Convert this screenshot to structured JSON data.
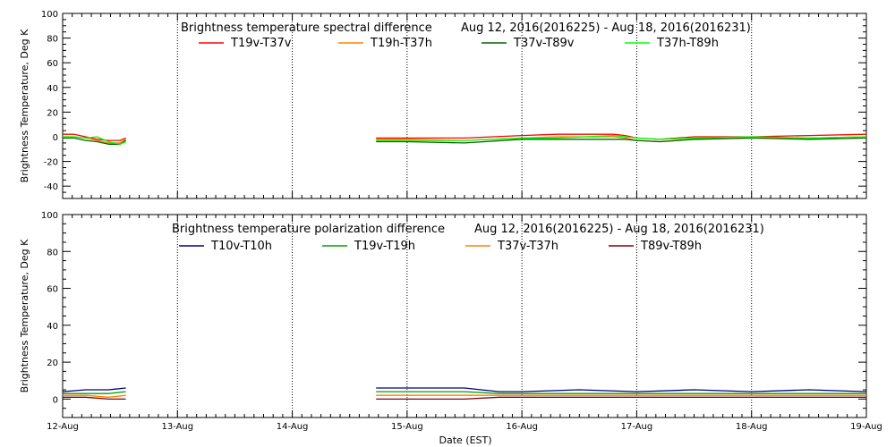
{
  "figure": {
    "xlabel": "Date (EST)",
    "x_ticks": [
      "12-Aug",
      "13-Aug",
      "14-Aug",
      "15-Aug",
      "16-Aug",
      "17-Aug",
      "18-Aug",
      "19-Aug"
    ]
  },
  "chart_data": [
    {
      "type": "line",
      "title": "Brightness temperature spectral difference",
      "subtitle": "Aug 12, 2016(2016225) - Aug 18, 2016(2016231)",
      "ylabel": "Brightness Temperature, Deg K",
      "xlabel": "",
      "xlim": [
        "12-Aug",
        "19-Aug"
      ],
      "ylim": [
        -50,
        100
      ],
      "y_ticks": [
        -40,
        -20,
        0,
        20,
        40,
        60,
        80,
        100
      ],
      "vertical_gridlines": [
        "13-Aug",
        "14-Aug",
        "15-Aug",
        "16-Aug",
        "17-Aug",
        "18-Aug"
      ],
      "legend_position": "top",
      "series": [
        {
          "name": "T19v-T37v",
          "color": "#ff0000",
          "segments": [
            {
              "x": [
                0.0,
                0.1,
                0.2,
                0.3,
                0.4,
                0.5,
                0.55
              ],
              "y": [
                2,
                2,
                0,
                -2,
                -3,
                -3,
                -1
              ]
            },
            {
              "x": [
                2.73,
                3.0,
                3.5,
                4.0,
                4.3,
                4.8,
                4.9,
                5.0,
                5.2,
                5.5,
                6.0,
                6.5,
                7.0
              ],
              "y": [
                -1,
                -1,
                -1,
                1,
                2,
                2,
                1,
                -1,
                -2,
                0,
                0,
                1,
                2
              ]
            }
          ]
        },
        {
          "name": "T19h-T37h",
          "color": "#ff8000",
          "segments": [
            {
              "x": [
                0.0,
                0.1,
                0.2,
                0.3,
                0.4,
                0.5,
                0.55
              ],
              "y": [
                0,
                0,
                -1,
                -3,
                -5,
                -5,
                -2
              ]
            },
            {
              "x": [
                2.73,
                3.0,
                3.5,
                4.0,
                4.3,
                4.8,
                4.9,
                5.0,
                5.2,
                5.5,
                6.0,
                6.5,
                7.0
              ],
              "y": [
                -2,
                -2,
                -3,
                -1,
                0,
                0,
                -1,
                -3,
                -4,
                -2,
                -1,
                -1,
                0
              ]
            }
          ]
        },
        {
          "name": "T37v-T89v",
          "color": "#006400",
          "segments": [
            {
              "x": [
                0.0,
                0.1,
                0.2,
                0.3,
                0.4,
                0.5,
                0.55
              ],
              "y": [
                -1,
                -1,
                -3,
                -4,
                -6,
                -6,
                -3
              ]
            },
            {
              "x": [
                2.73,
                3.0,
                3.5,
                4.0,
                4.3,
                4.8,
                4.9,
                5.0,
                5.2,
                5.5,
                6.0,
                6.5,
                7.0
              ],
              "y": [
                -4,
                -4,
                -5,
                -2,
                -2,
                -2,
                -2,
                -3,
                -4,
                -2,
                -1,
                -2,
                -1
              ]
            }
          ]
        },
        {
          "name": "T37h-T89h",
          "color": "#00ff00",
          "segments": [
            {
              "x": [
                0.0,
                0.1,
                0.2,
                0.3,
                0.4,
                0.5,
                0.55
              ],
              "y": [
                0,
                0,
                -1,
                0,
                -4,
                -6,
                -4
              ]
            },
            {
              "x": [
                2.73,
                3.0,
                3.5,
                4.0,
                4.3,
                4.8,
                4.9,
                5.0,
                5.2,
                5.5,
                6.0,
                6.5,
                7.0
              ],
              "y": [
                -3,
                -3,
                -3,
                -1,
                -1,
                1,
                0,
                -1,
                -2,
                -1,
                0,
                -1,
                0
              ]
            }
          ]
        }
      ]
    },
    {
      "type": "line",
      "title": "Brightness temperature polarization difference",
      "subtitle": "Aug 12, 2016(2016225) - Aug 18, 2016(2016231)",
      "ylabel": "Brightness Temperature, Deg K",
      "xlabel": "Date (EST)",
      "xlim": [
        "12-Aug",
        "19-Aug"
      ],
      "ylim": [
        -10,
        100
      ],
      "y_ticks": [
        0,
        20,
        40,
        60,
        80,
        100
      ],
      "vertical_gridlines": [
        "13-Aug",
        "14-Aug",
        "15-Aug",
        "16-Aug",
        "17-Aug",
        "18-Aug"
      ],
      "legend_position": "top",
      "series": [
        {
          "name": "T10v-T10h",
          "color": "#000080",
          "segments": [
            {
              "x": [
                0.0,
                0.2,
                0.4,
                0.55
              ],
              "y": [
                4,
                5,
                5,
                6
              ]
            },
            {
              "x": [
                2.73,
                3.0,
                3.5,
                3.8,
                4.0,
                4.5,
                5.0,
                5.5,
                6.0,
                6.5,
                7.0
              ],
              "y": [
                6,
                6,
                6,
                4,
                4,
                5,
                4,
                5,
                4,
                5,
                4
              ]
            }
          ]
        },
        {
          "name": "T19v-T19h",
          "color": "#00a000",
          "segments": [
            {
              "x": [
                0.0,
                0.2,
                0.4,
                0.55
              ],
              "y": [
                3,
                3,
                3,
                4
              ]
            },
            {
              "x": [
                2.73,
                3.0,
                3.5,
                3.8,
                4.0,
                4.5,
                5.0,
                5.5,
                6.0,
                6.5,
                7.0
              ],
              "y": [
                4,
                4,
                4,
                3,
                3,
                3,
                3,
                3,
                3,
                3,
                3
              ]
            }
          ]
        },
        {
          "name": "T37v-T37h",
          "color": "#ff8000",
          "segments": [
            {
              "x": [
                0.0,
                0.2,
                0.4,
                0.55
              ],
              "y": [
                2,
                2,
                1,
                2
              ]
            },
            {
              "x": [
                2.73,
                3.0,
                3.5,
                3.8,
                4.0,
                4.5,
                5.0,
                5.5,
                6.0,
                6.5,
                7.0
              ],
              "y": [
                2,
                2,
                2,
                2,
                2,
                2,
                2,
                2,
                2,
                2,
                2
              ]
            }
          ]
        },
        {
          "name": "T89v-T89h",
          "color": "#800000",
          "segments": [
            {
              "x": [
                0.0,
                0.2,
                0.4,
                0.55
              ],
              "y": [
                1,
                1,
                0,
                0
              ]
            },
            {
              "x": [
                2.73,
                3.0,
                3.5,
                3.8,
                4.0,
                4.5,
                5.0,
                5.5,
                6.0,
                6.5,
                7.0
              ],
              "y": [
                0,
                0,
                0,
                1,
                1,
                1,
                1,
                1,
                1,
                1,
                1
              ]
            }
          ]
        }
      ]
    }
  ]
}
